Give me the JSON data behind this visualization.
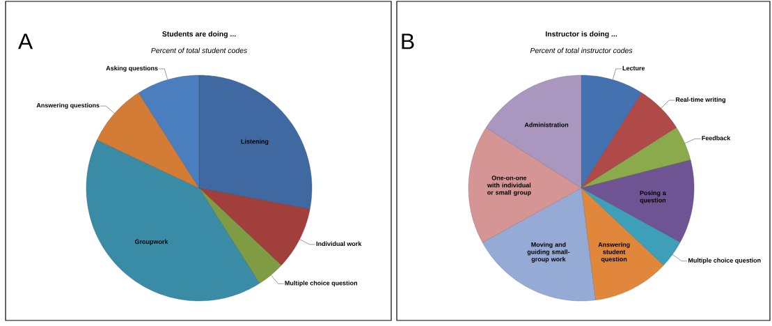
{
  "chart_data": [
    {
      "type": "pie",
      "title": "Students are doing ...",
      "subtitle": "Percent of total student codes",
      "annotations": [
        "A"
      ],
      "categories": [
        "Listening",
        "Individual work",
        "Multiple choice question",
        "Groupwork",
        "Answering questions",
        "Asking questions"
      ],
      "values": [
        28,
        9,
        4,
        41,
        9,
        9
      ],
      "colors": [
        "#3f69a0",
        "#a03f3c",
        "#7f9c45",
        "#3a8ba6",
        "#d27c36",
        "#4a7ebf"
      ]
    },
    {
      "type": "pie",
      "title": "Instructor is doing ...",
      "subtitle": "Percent of total instructor codes",
      "annotations": [
        "B"
      ],
      "categories": [
        "Lecture",
        "Real-time writing",
        "Feedback",
        "Posing a question",
        "Multiple choice question",
        "Answering student question",
        "Moving and guiding small-group work",
        "One-on-one with individual or small group",
        "Administration"
      ],
      "values": [
        9,
        7,
        5,
        12,
        4,
        11,
        19,
        17,
        16
      ],
      "colors": [
        "#4472b0",
        "#b04a48",
        "#8aaa4c",
        "#6f5494",
        "#3ea0b8",
        "#e0873c",
        "#95abd6",
        "#d49594",
        "#a997c0"
      ]
    }
  ]
}
